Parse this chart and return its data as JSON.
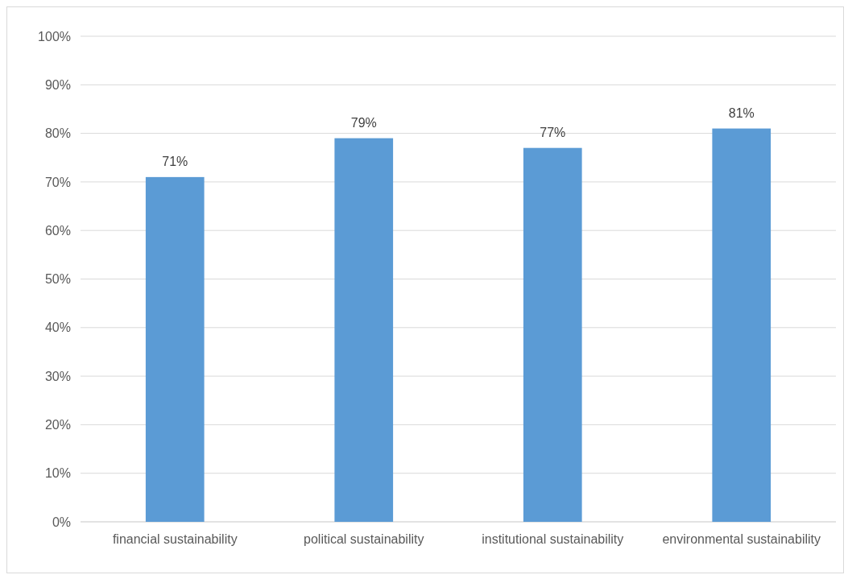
{
  "chart_data": {
    "type": "bar",
    "categories": [
      "financial sustainability",
      "political sustainability",
      "institutional sustainability",
      "environmental sustainability"
    ],
    "values": [
      71,
      79,
      77,
      81
    ],
    "value_labels": [
      "71%",
      "79%",
      "77%",
      "81%"
    ],
    "color": "#5b9bd5",
    "ylim": [
      0,
      100
    ],
    "yticks": [
      {
        "value": 0,
        "label": "0%"
      },
      {
        "value": 10,
        "label": "10%"
      },
      {
        "value": 20,
        "label": "20%"
      },
      {
        "value": 30,
        "label": "30%"
      },
      {
        "value": 40,
        "label": "40%"
      },
      {
        "value": 50,
        "label": "50%"
      },
      {
        "value": 60,
        "label": "60%"
      },
      {
        "value": 70,
        "label": "70%"
      },
      {
        "value": 80,
        "label": "80%"
      },
      {
        "value": 90,
        "label": "90%"
      },
      {
        "value": 100,
        "label": "100%"
      }
    ],
    "grid": "y"
  }
}
